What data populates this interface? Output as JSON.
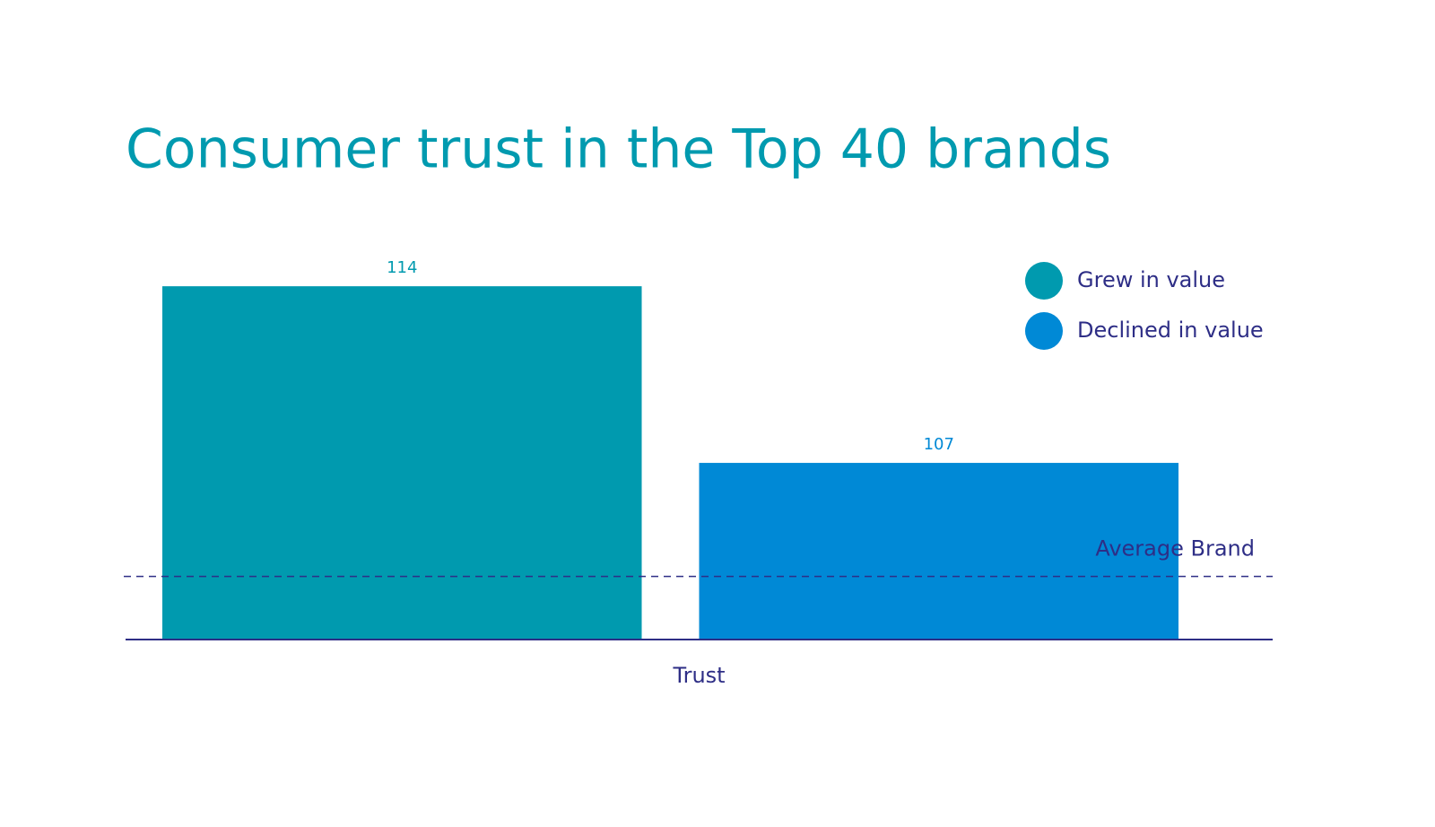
{
  "chart_data": {
    "type": "bar",
    "title": "Consumer trust in the Top 40 brands",
    "categories": [
      "Trust"
    ],
    "series": [
      {
        "name": "Grew in value",
        "color": "#009aaf",
        "values": [
          114
        ]
      },
      {
        "name": "Declined in value",
        "color": "#0089d6",
        "values": [
          107
        ]
      }
    ],
    "ylim": [
      100,
      115
    ],
    "reference_lines": [
      {
        "label": "Average Brand",
        "value": 102.5
      }
    ],
    "legend": "top-right"
  }
}
